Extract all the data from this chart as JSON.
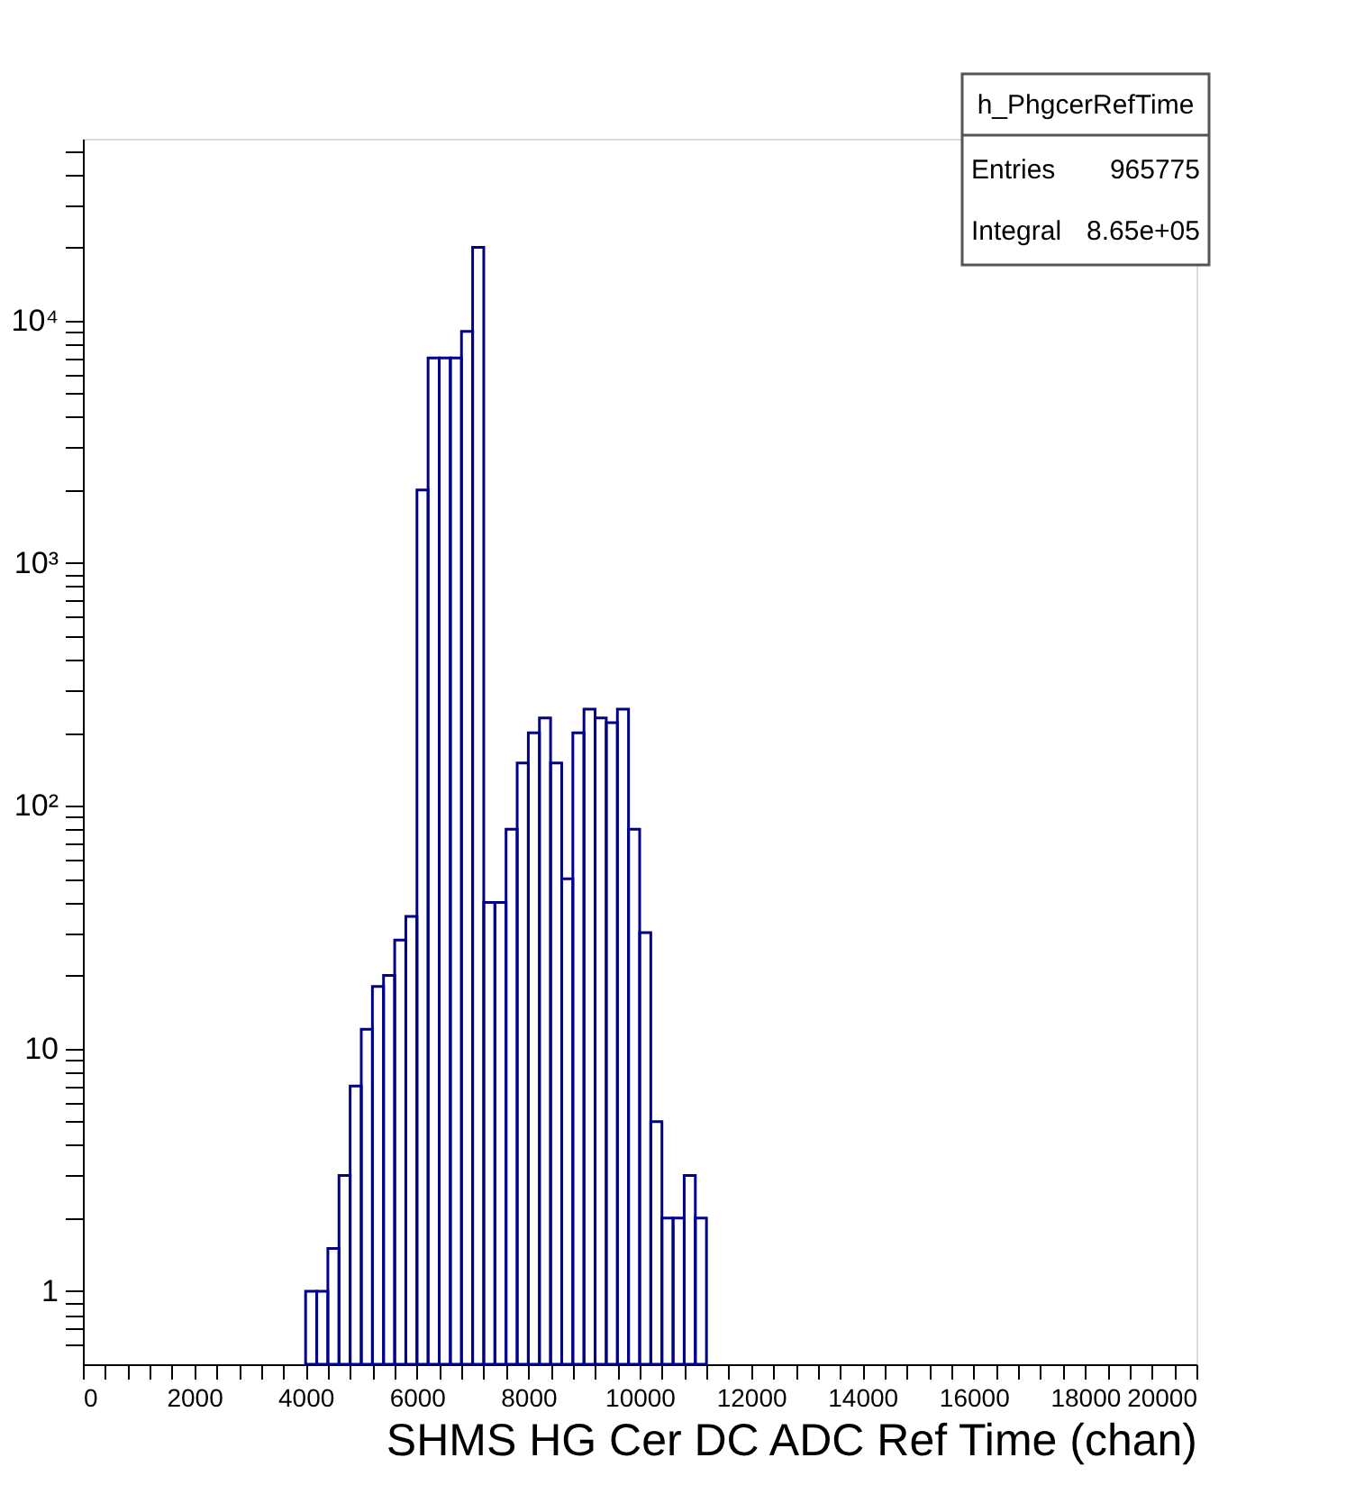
{
  "chart_data": {
    "type": "histogram",
    "title": "h_PhgcerRefTime",
    "xlabel": "SHMS HG Cer DC ADC Ref Time (chan)",
    "annotations": [
      "Entries 965775",
      "Integral 8.65e+05"
    ],
    "bins": [
      4000,
      4200,
      4400,
      4600,
      4800,
      5000,
      5200,
      5400,
      5600,
      5800,
      6000,
      6200,
      6400,
      6600,
      6800,
      7000,
      7200,
      7400,
      7600,
      7800,
      8000,
      8200,
      8400,
      8600,
      8800,
      9000,
      9200,
      9400,
      9600,
      9800,
      10000,
      10200,
      10400,
      10600,
      10800,
      11000,
      11200
    ],
    "values": [
      1,
      1,
      1.5,
      3,
      7,
      12,
      18,
      20,
      28,
      35,
      2000,
      7000,
      7000,
      7000,
      9000,
      20000,
      40,
      40,
      80,
      150,
      200,
      230,
      150,
      50,
      200,
      250,
      230,
      220,
      250,
      80,
      30,
      5,
      2,
      2,
      3,
      2
    ],
    "color": "#00008b",
    "log": "y",
    "xlim": [
      0,
      20000
    ],
    "xticks": [
      0,
      {
        "value": 400,
        "label": null
      },
      {
        "value": 800,
        "label": null
      },
      {
        "value": 1200,
        "label": null
      },
      {
        "value": 1600,
        "label": null
      },
      2000,
      {
        "value": 2400,
        "label": null
      },
      {
        "value": 2800,
        "label": null
      },
      {
        "value": 3200,
        "label": null
      },
      {
        "value": 3600,
        "label": null
      },
      4000,
      {
        "value": 4400,
        "label": null
      },
      {
        "value": 4800,
        "label": null
      },
      {
        "value": 5200,
        "label": null
      },
      {
        "value": 5600,
        "label": null
      },
      6000,
      {
        "value": 6400,
        "label": null
      },
      {
        "value": 6800,
        "label": null
      },
      {
        "value": 7200,
        "label": null
      },
      {
        "value": 7600,
        "label": null
      },
      8000,
      {
        "value": 8400,
        "label": null
      },
      {
        "value": 8800,
        "label": null
      },
      {
        "value": 9200,
        "label": null
      },
      {
        "value": 9600,
        "label": null
      },
      10000,
      {
        "value": 10400,
        "label": null
      },
      {
        "value": 10800,
        "label": null
      },
      {
        "value": 11200,
        "label": null
      },
      {
        "value": 11600,
        "label": null
      },
      12000,
      {
        "value": 12400,
        "label": null
      },
      {
        "value": 12800,
        "label": null
      },
      {
        "value": 13200,
        "label": null
      },
      {
        "value": 13600,
        "label": null
      },
      14000,
      {
        "value": 14400,
        "label": null
      },
      {
        "value": 14800,
        "label": null
      },
      {
        "value": 15200,
        "label": null
      },
      {
        "value": 15600,
        "label": null
      },
      16000,
      {
        "value": 16400,
        "label": null
      },
      {
        "value": 16800,
        "label": null
      },
      {
        "value": 17200,
        "label": null
      },
      {
        "value": 17600,
        "label": null
      },
      18000,
      {
        "value": 18400,
        "label": null
      },
      {
        "value": 18800,
        "label": null
      },
      {
        "value": 19200,
        "label": null
      },
      {
        "value": 19600,
        "label": null
      },
      20000
    ],
    "ylim": [
      0.5,
      56000
    ],
    "yticks": [
      {
        "value": 0.6,
        "label": null
      },
      {
        "value": 0.7,
        "label": null
      },
      {
        "value": 0.8,
        "label": null
      },
      {
        "value": 0.9,
        "label": null
      },
      1,
      {
        "value": 2,
        "label": null
      },
      {
        "value": 3,
        "label": null
      },
      {
        "value": 4,
        "label": null
      },
      {
        "value": 5,
        "label": null
      },
      {
        "value": 6,
        "label": null
      },
      {
        "value": 7,
        "label": null
      },
      {
        "value": 8,
        "label": null
      },
      {
        "value": 9,
        "label": null
      },
      10,
      {
        "value": 20,
        "label": null
      },
      {
        "value": 30,
        "label": null
      },
      {
        "value": 40,
        "label": null
      },
      {
        "value": 50,
        "label": null
      },
      {
        "value": 60,
        "label": null
      },
      {
        "value": 70,
        "label": null
      },
      {
        "value": 80,
        "label": null
      },
      {
        "value": 90,
        "label": null
      },
      {
        "value": 100,
        "label": "10²"
      },
      {
        "value": 200,
        "label": null
      },
      {
        "value": 300,
        "label": null
      },
      {
        "value": 400,
        "label": null
      },
      {
        "value": 500,
        "label": null
      },
      {
        "value": 600,
        "label": null
      },
      {
        "value": 700,
        "label": null
      },
      {
        "value": 800,
        "label": null
      },
      {
        "value": 900,
        "label": null
      },
      {
        "value": 1000,
        "label": "10³"
      },
      {
        "value": 2000,
        "label": null
      },
      {
        "value": 3000,
        "label": null
      },
      {
        "value": 4000,
        "label": null
      },
      {
        "value": 5000,
        "label": null
      },
      {
        "value": 6000,
        "label": null
      },
      {
        "value": 7000,
        "label": null
      },
      {
        "value": 8000,
        "label": null
      },
      {
        "value": 9000,
        "label": null
      },
      {
        "value": 10000,
        "label": "10⁴"
      },
      {
        "value": 20000,
        "label": null
      },
      {
        "value": 30000,
        "label": null
      },
      {
        "value": 40000,
        "label": null
      },
      {
        "value": 50000,
        "label": null
      }
    ],
    "grid": false
  }
}
